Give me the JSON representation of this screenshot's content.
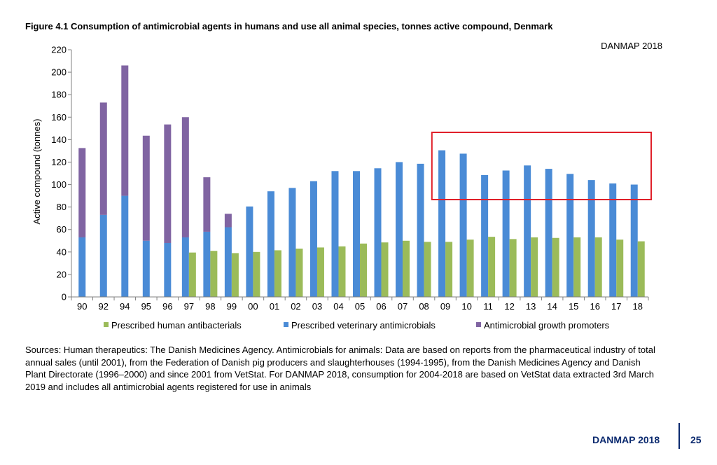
{
  "figure_title": "Figure 4.1 Consumption of antimicrobial agents in humans and use all animal species, tonnes active compound, Denmark",
  "sources_text": "Sources: Human therapeutics: The Danish Medicines Agency. Antimicrobials for animals: Data are based on reports from the pharmaceutical industry of total annual sales (until 2001), from the Federation of Danish pig producers and slaughterhouses (1994-1995), from the Danish Medicines Agency and Danish Plant Directorate (1996–2000) and since 2001 from VetStat. For DANMAP 2018, consumption for 2004-2018 are based on VetStat data extracted 3rd March 2019 and includes all antimicrobial agents registered for use in animals",
  "footer": {
    "label": "DANMAP 2018",
    "page": "25"
  },
  "colors": {
    "human": "#9bbb59",
    "veterinary": "#4a8bd6",
    "growth_promoters": "#8064a2",
    "highlight": "#e0202a",
    "axis": "#808080",
    "footer": "#0b2a6f"
  },
  "chart_data": {
    "type": "bar",
    "watermark": "DANMAP 2018",
    "ylabel": "Active compound (tonnes)",
    "xlabel": "",
    "ylim": [
      0,
      220
    ],
    "yticks": [
      "0",
      "20",
      "40",
      "60",
      "80",
      "100",
      "120",
      "140",
      "160",
      "180",
      "200",
      "220"
    ],
    "categories": [
      "90",
      "92",
      "94",
      "95",
      "96",
      "97",
      "98",
      "99",
      "00",
      "01",
      "02",
      "03",
      "04",
      "05",
      "06",
      "07",
      "08",
      "09",
      "10",
      "11",
      "12",
      "13",
      "14",
      "15",
      "16",
      "17",
      "18"
    ],
    "series": [
      {
        "name": "Prescribed human antibacterials",
        "values": [
          null,
          null,
          null,
          null,
          null,
          39.5,
          41,
          39,
          40,
          41.5,
          43,
          44,
          45,
          47.5,
          48.5,
          50,
          49,
          49,
          51,
          53.5,
          51.5,
          53,
          52.5,
          53,
          53,
          51,
          49.5
        ]
      },
      {
        "name": "Prescribed veterinary antimicrobials",
        "values": [
          53,
          73,
          90,
          50,
          48,
          53,
          58,
          62,
          80.5,
          94,
          97,
          103,
          112,
          112,
          114.5,
          120,
          118.5,
          130.5,
          127.5,
          108.5,
          112.5,
          117,
          114,
          109.5,
          104,
          101,
          100
        ]
      },
      {
        "name": "Antimicrobial growth promoters",
        "values": [
          79.5,
          100,
          116,
          93.5,
          105.5,
          107,
          48.5,
          12,
          null,
          null,
          null,
          null,
          null,
          null,
          null,
          null,
          null,
          null,
          null,
          null,
          null,
          null,
          null,
          null,
          null,
          null,
          null
        ]
      }
    ],
    "legend_position": "bottom",
    "highlight_box": {
      "from_category": "09",
      "to_category": "18"
    }
  }
}
